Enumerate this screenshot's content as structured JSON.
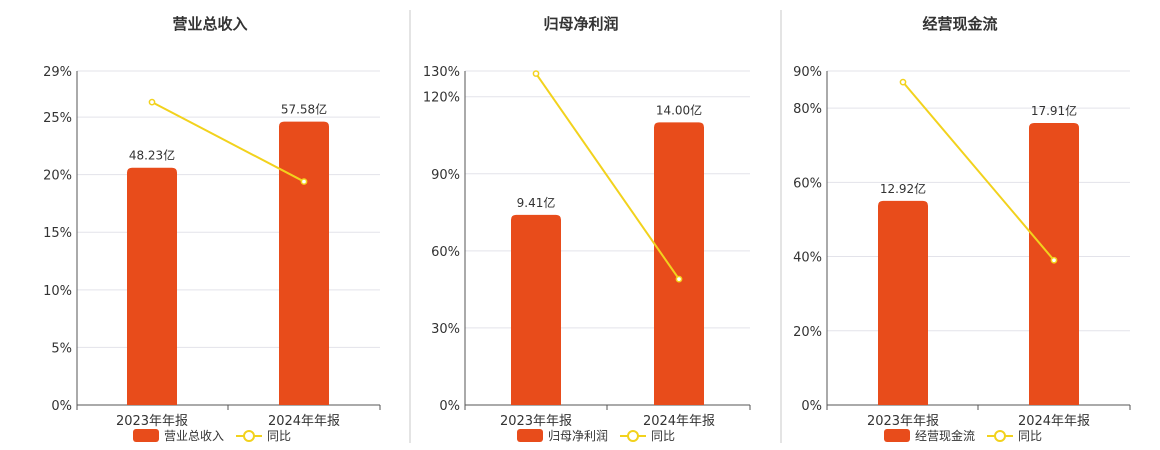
{
  "colors": {
    "bar": "#e84c1b",
    "line": "#f2d21d",
    "grid": "#e3e3ea",
    "axis": "#555555"
  },
  "chart_data": [
    {
      "type": "bar",
      "title": "营业总收入",
      "categories": [
        "2023年年报",
        "2024年年报"
      ],
      "series": [
        {
          "name": "营业总收入",
          "type": "bar",
          "values": [
            20.6,
            24.6
          ],
          "labels": [
            "48.23亿",
            "57.58亿"
          ]
        },
        {
          "name": "同比",
          "type": "line",
          "values": [
            26.3,
            19.4
          ]
        }
      ],
      "yticks": [
        "0%",
        "5%",
        "10%",
        "15%",
        "20%",
        "25%",
        "29%"
      ],
      "ytick_values": [
        0,
        5,
        10,
        15,
        20,
        25,
        29
      ],
      "ylim": [
        0,
        29
      ],
      "grid": true,
      "legend": "bottom"
    },
    {
      "type": "bar",
      "title": "归母净利润",
      "categories": [
        "2023年年报",
        "2024年年报"
      ],
      "series": [
        {
          "name": "归母净利润",
          "type": "bar",
          "values": [
            74,
            110
          ],
          "labels": [
            "9.41亿",
            "14.00亿"
          ]
        },
        {
          "name": "同比",
          "type": "line",
          "values": [
            129,
            49
          ]
        }
      ],
      "yticks": [
        "0%",
        "30%",
        "60%",
        "90%",
        "120%",
        "130%"
      ],
      "ytick_values": [
        0,
        30,
        60,
        90,
        120,
        130
      ],
      "ylim": [
        0,
        130
      ],
      "grid": true,
      "legend": "bottom"
    },
    {
      "type": "bar",
      "title": "经营现金流",
      "categories": [
        "2023年年报",
        "2024年年报"
      ],
      "series": [
        {
          "name": "经营现金流",
          "type": "bar",
          "values": [
            55,
            76
          ],
          "labels": [
            "12.92亿",
            "17.91亿"
          ]
        },
        {
          "name": "同比",
          "type": "line",
          "values": [
            87,
            39
          ]
        }
      ],
      "yticks": [
        "0%",
        "20%",
        "40%",
        "60%",
        "80%",
        "90%"
      ],
      "ytick_values": [
        0,
        20,
        40,
        60,
        80,
        90
      ],
      "ylim": [
        0,
        90
      ],
      "grid": true,
      "legend": "bottom"
    }
  ]
}
